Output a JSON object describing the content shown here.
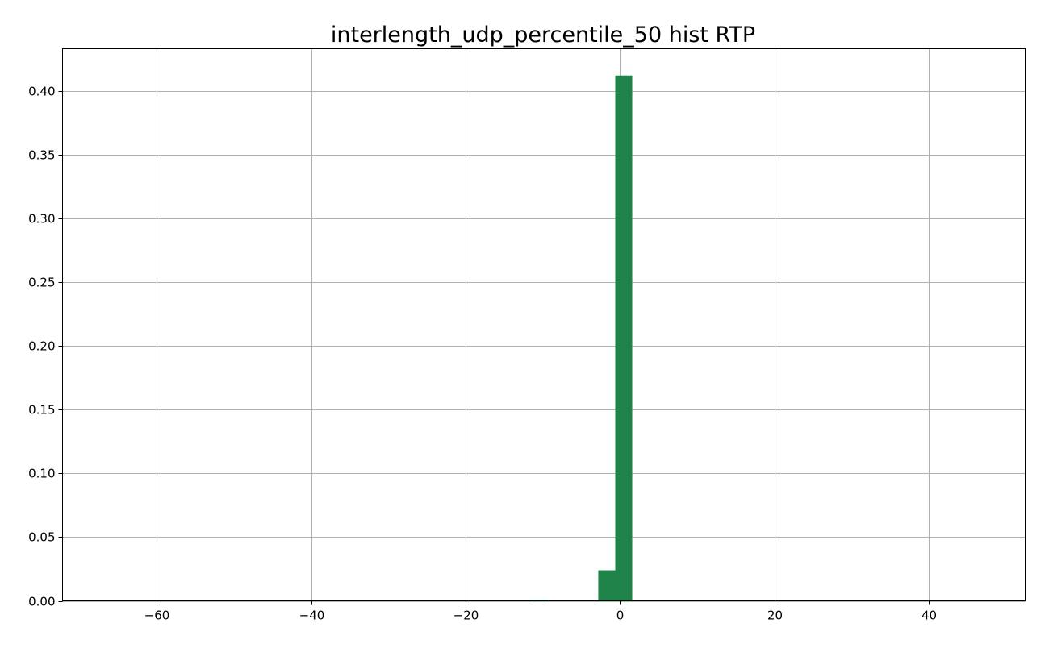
{
  "chart_data": {
    "type": "bar",
    "title": "interlength_udp_percentile_50 hist RTP",
    "xlabel": "",
    "ylabel": "",
    "xlim": [
      -72.2,
      52.5
    ],
    "ylim": [
      0,
      0.433
    ],
    "grid": true,
    "bar_color": "#208349",
    "x_ticks": [
      {
        "value": -60,
        "label": "−60"
      },
      {
        "value": -40,
        "label": "−40"
      },
      {
        "value": -20,
        "label": "−20"
      },
      {
        "value": 0,
        "label": "0"
      },
      {
        "value": 20,
        "label": "20"
      },
      {
        "value": 40,
        "label": "40"
      }
    ],
    "y_ticks": [
      {
        "value": 0.0,
        "label": "0.00"
      },
      {
        "value": 0.05,
        "label": "0.05"
      },
      {
        "value": 0.1,
        "label": "0.10"
      },
      {
        "value": 0.15,
        "label": "0.15"
      },
      {
        "value": 0.2,
        "label": "0.20"
      },
      {
        "value": 0.25,
        "label": "0.25"
      },
      {
        "value": 0.3,
        "label": "0.30"
      },
      {
        "value": 0.35,
        "label": "0.35"
      },
      {
        "value": 0.4,
        "label": "0.40"
      }
    ],
    "bins": [
      {
        "x0": -11.5,
        "x1": -9.3,
        "value": 0.0008
      },
      {
        "x0": -2.8,
        "x1": -0.6,
        "value": 0.024
      },
      {
        "x0": -0.6,
        "x1": 1.6,
        "value": 0.412
      }
    ]
  }
}
